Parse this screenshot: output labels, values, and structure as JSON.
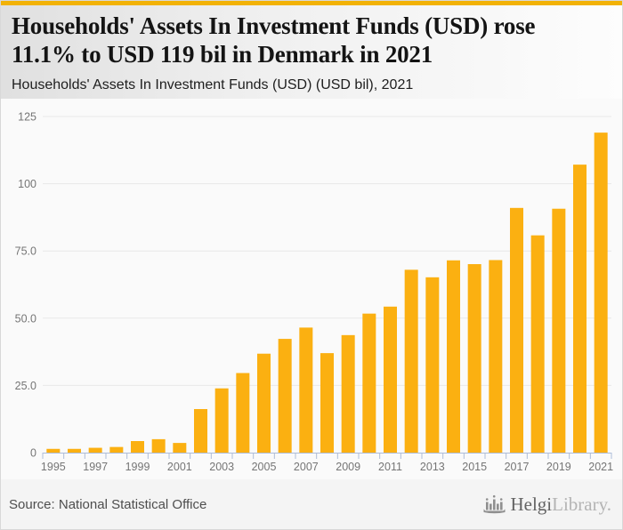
{
  "header": {
    "title_line1": "Households' Assets In Investment Funds (USD) rose",
    "title_line2": "11.1% to USD 119 bil in Denmark in 2021",
    "subtitle": "Households' Assets In Investment Funds (USD) (USD bil), 2021"
  },
  "chart_data": {
    "type": "bar",
    "title": "Households' Assets In Investment Funds (USD) (USD bil), 2021",
    "xlabel": "",
    "ylabel": "",
    "ylim": [
      0,
      125
    ],
    "grid": true,
    "legend_position": "none",
    "categories": [
      "1995",
      "1996",
      "1997",
      "1998",
      "1999",
      "2000",
      "2001",
      "2002",
      "2003",
      "2004",
      "2005",
      "2006",
      "2007",
      "2008",
      "2009",
      "2010",
      "2011",
      "2012",
      "2013",
      "2014",
      "2015",
      "2016",
      "2017",
      "2018",
      "2019",
      "2020",
      "2021"
    ],
    "values": [
      1.4,
      1.4,
      1.8,
      2.1,
      4.3,
      5.0,
      3.6,
      16.2,
      23.9,
      29.6,
      36.8,
      42.3,
      46.5,
      37.0,
      43.7,
      51.7,
      54.3,
      68.0,
      65.2,
      71.5,
      70.1,
      71.6,
      91.0,
      80.8,
      90.7,
      107.1,
      119.0
    ],
    "yticks": [
      {
        "value": 0,
        "label": "0"
      },
      {
        "value": 25,
        "label": "25.0"
      },
      {
        "value": 50,
        "label": "50.0"
      },
      {
        "value": 75,
        "label": "75.0"
      },
      {
        "value": 100,
        "label": "100"
      },
      {
        "value": 125,
        "label": "125"
      }
    ],
    "x_labeled_categories": [
      "1995",
      "1997",
      "1999",
      "2001",
      "2003",
      "2005",
      "2007",
      "2009",
      "2011",
      "2013",
      "2015",
      "2017",
      "2019",
      "2021"
    ],
    "bar_color": "#FBB011",
    "grid_color": "#E8E8E8",
    "axis_color": "#AEBDD9",
    "tick_label_color": "#757575"
  },
  "footer": {
    "source": "Source: National Statistical Office",
    "logo": {
      "icon": "helgi-bar-chart-logo",
      "brand_primary": "Helgi",
      "brand_secondary": "Library."
    }
  },
  "colors": {
    "top_strip": "#F2B206",
    "accent_amber": "#FBB011",
    "page_background": "#FAFAFA",
    "footer_background": "#F4F4F4"
  }
}
